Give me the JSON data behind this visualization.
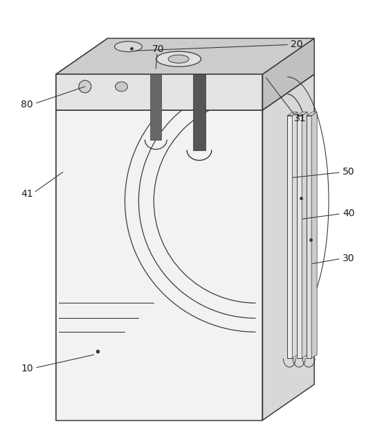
{
  "bg_color": "#ffffff",
  "lc": "#3a3a3a",
  "fill_front": "#f2f2f2",
  "fill_top_body": "#dcdcdc",
  "fill_left_body": "#e8e8e8",
  "fill_lid_front": "#e4e4e4",
  "fill_lid_top": "#cccccc",
  "fill_lid_right": "#c0c0c0",
  "fill_lid_left": "#d8d8d8",
  "fill_plate_light": "#eeeeee",
  "fill_plate_mid": "#e0e0e0",
  "fill_plate_dark": "#d4d4d4",
  "fill_tab": "#555555",
  "label_fs": 10,
  "label_color": "#1a1a1a"
}
